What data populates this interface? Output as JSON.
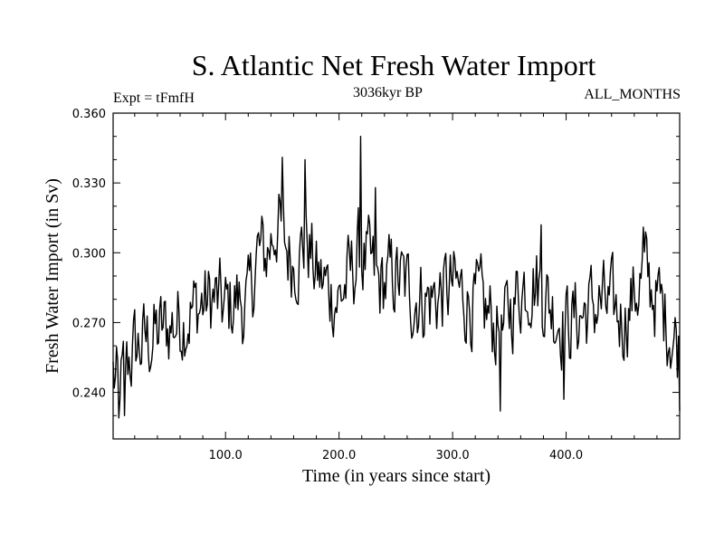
{
  "chart_data": {
    "type": "line",
    "title": "S. Atlantic Net Fresh Water Import",
    "subtitle_left": "Expt = tFmfH",
    "subtitle_center": "3036kyr BP",
    "subtitle_right": "ALL_MONTHS",
    "xlabel": "Time (in years since start)",
    "ylabel": "Fresh Water Import (in Sv)",
    "xlim": [
      1,
      500
    ],
    "ylim": [
      0.22,
      0.36
    ],
    "xticks": [
      100,
      200,
      300,
      400
    ],
    "xtick_labels": [
      "100.0",
      "200.0",
      "300.0",
      "400.0"
    ],
    "yticks": [
      0.24,
      0.27,
      0.3,
      0.33,
      0.36
    ],
    "ytick_labels": [
      "0.240",
      "0.270",
      "0.300",
      "0.330",
      "0.360"
    ],
    "series": [
      {
        "name": "Net Fresh Water Import",
        "anchors_x": [
          1,
          5,
          10,
          15,
          20,
          30,
          40,
          50,
          60,
          70,
          80,
          90,
          100,
          110,
          120,
          128,
          135,
          140,
          146,
          150,
          158,
          165,
          172,
          180,
          190,
          200,
          210,
          218,
          225,
          235,
          250,
          265,
          280,
          300,
          320,
          340,
          345,
          350,
          360,
          370,
          378,
          390,
          400,
          410,
          420,
          430,
          440,
          450,
          460,
          465,
          470,
          480,
          490,
          500
        ],
        "anchors_y": [
          0.248,
          0.24,
          0.246,
          0.255,
          0.258,
          0.262,
          0.265,
          0.268,
          0.272,
          0.275,
          0.278,
          0.28,
          0.275,
          0.28,
          0.276,
          0.3,
          0.298,
          0.305,
          0.315,
          0.305,
          0.298,
          0.3,
          0.305,
          0.29,
          0.285,
          0.28,
          0.29,
          0.3,
          0.295,
          0.285,
          0.29,
          0.282,
          0.28,
          0.285,
          0.278,
          0.268,
          0.265,
          0.275,
          0.285,
          0.29,
          0.285,
          0.275,
          0.27,
          0.272,
          0.276,
          0.278,
          0.275,
          0.272,
          0.282,
          0.288,
          0.29,
          0.28,
          0.27,
          0.258
        ],
        "spikes": [
          [
            6,
            0.229
          ],
          [
            11,
            0.23
          ],
          [
            150,
            0.341
          ],
          [
            170,
            0.34
          ],
          [
            219,
            0.35
          ],
          [
            232,
            0.328
          ],
          [
            342,
            0.232
          ],
          [
            378,
            0.312
          ],
          [
            398,
            0.237
          ],
          [
            468,
            0.311
          ],
          [
            500,
            0.232
          ]
        ],
        "noise_amplitude": 0.022,
        "n_points": 500
      }
    ]
  }
}
